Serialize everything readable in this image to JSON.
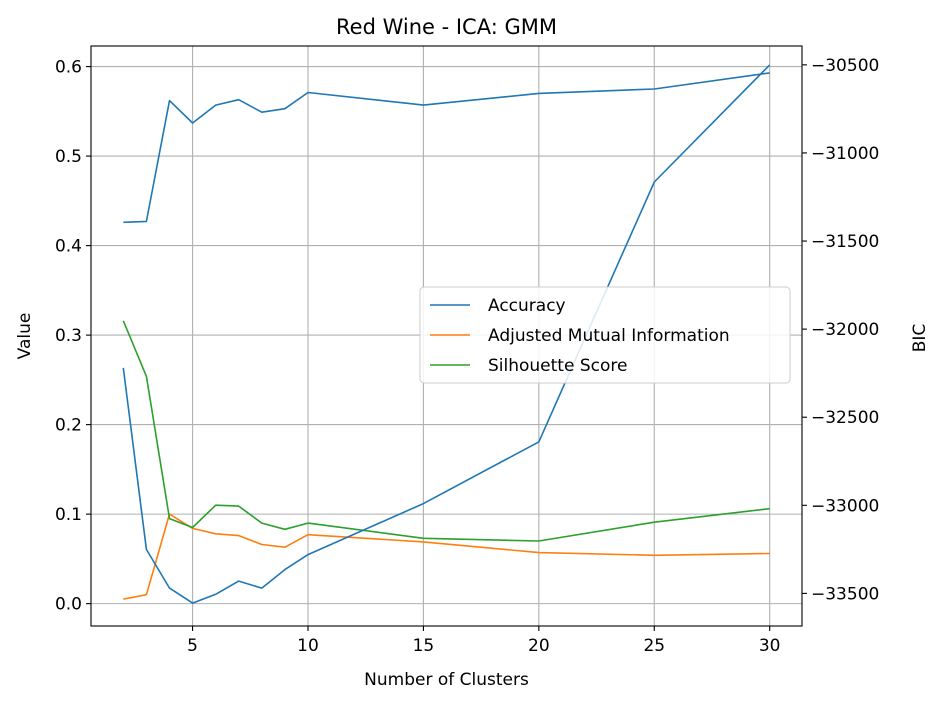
{
  "chart_data": {
    "type": "line",
    "title": "Red Wine - ICA: GMM",
    "xlabel": "Number of Clusters",
    "ylabel": "Value",
    "y2label": "BIC",
    "x": [
      2,
      3,
      4,
      5,
      6,
      7,
      8,
      9,
      10,
      15,
      20,
      25,
      30
    ],
    "xlim": [
      0.6,
      31.4
    ],
    "ylim": [
      -0.025,
      0.623
    ],
    "y2lim": [
      -33685,
      -30393
    ],
    "xticks": [
      5,
      10,
      15,
      20,
      25,
      30
    ],
    "yticks": [
      0.0,
      0.1,
      0.2,
      0.3,
      0.4,
      0.5,
      0.6
    ],
    "ytick_labels": [
      "0.0",
      "0.1",
      "0.2",
      "0.3",
      "0.4",
      "0.5",
      "0.6"
    ],
    "y2ticks": [
      -33500,
      -33000,
      -32500,
      -32000,
      -31500,
      -31000,
      -30500
    ],
    "y2tick_labels": [
      "−33500",
      "−33000",
      "−32500",
      "−32000",
      "−31500",
      "−31000",
      "−30500"
    ],
    "grid": true,
    "legend_position": "center-right",
    "series": [
      {
        "name": "Accuracy",
        "axis": "left",
        "color": "#1f77b4",
        "values": [
          0.426,
          0.427,
          0.562,
          0.537,
          0.557,
          0.563,
          0.549,
          0.553,
          0.571,
          0.557,
          0.57,
          0.575,
          0.593
        ]
      },
      {
        "name": "Adjusted Mutual Information",
        "axis": "left",
        "color": "#ff7f0e",
        "values": [
          0.005,
          0.01,
          0.1,
          0.084,
          0.078,
          0.076,
          0.066,
          0.063,
          0.077,
          0.069,
          0.057,
          0.054,
          0.056
        ]
      },
      {
        "name": "Silhouette Score",
        "axis": "left",
        "color": "#2ca02c",
        "values": [
          0.316,
          0.254,
          0.095,
          0.085,
          0.11,
          0.109,
          0.09,
          0.083,
          0.09,
          0.073,
          0.07,
          0.091,
          0.106
        ]
      },
      {
        "name": "BIC",
        "axis": "right",
        "color": "#1f77b4",
        "values": [
          -32220,
          -33250,
          -33470,
          -33555,
          -33505,
          -33430,
          -33470,
          -33365,
          -33280,
          -32990,
          -32640,
          -31165,
          -30500
        ]
      }
    ]
  }
}
